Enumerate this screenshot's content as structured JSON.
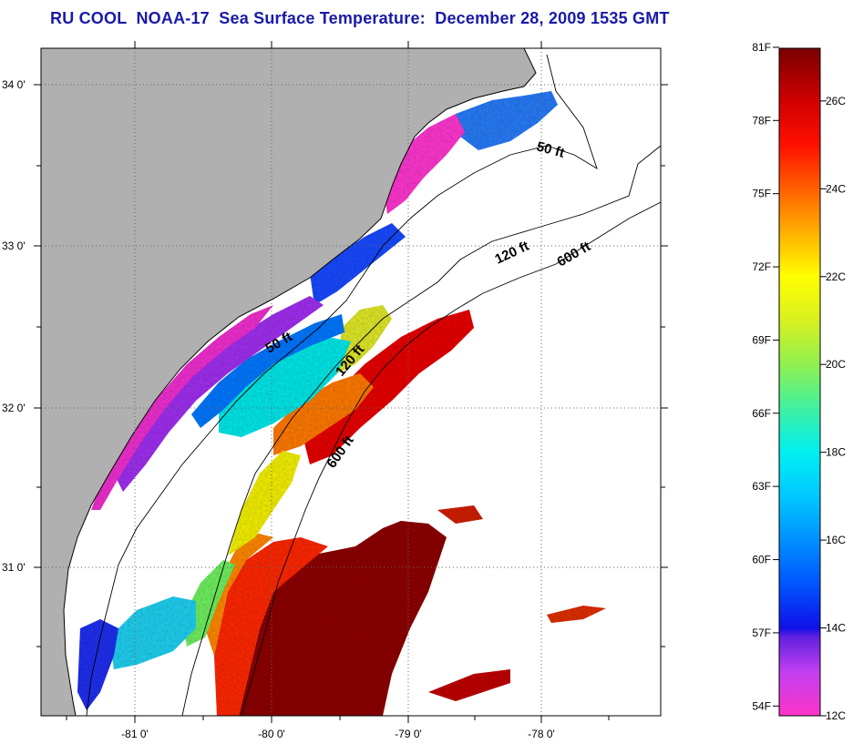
{
  "title": "RU COOL  NOAA-17  Sea Surface Temperature:  December 28, 2009 1535 GMT",
  "map": {
    "colors": {
      "land": "#b0b0b0",
      "ocean_nodata": "#ffffff",
      "grid": "#666666",
      "coast": "#000000",
      "bathymetry": "#000000"
    },
    "lat_labels": [
      "34 0'",
      "33 0'",
      "32 0'",
      "31 0'"
    ],
    "lon_labels": [
      "-81 0'",
      "-80 0'",
      "-79 0'",
      "-78 0'"
    ],
    "contour_labels": {
      "north_50": "50 ft",
      "north_120": "120 ft",
      "north_600": "600 ft",
      "mid_50": "50 ft",
      "mid_120": "120 ft",
      "south_600": "600 ft"
    }
  },
  "colorbar": {
    "fahrenheit_labels": [
      "81F",
      "78F",
      "75F",
      "72F",
      "69F",
      "66F",
      "63F",
      "60F",
      "57F",
      "54F"
    ],
    "celsius_labels": [
      "26C",
      "24C",
      "22C",
      "20C",
      "18C",
      "16C",
      "14C",
      "12C"
    ],
    "scale_min_c": 12,
    "scale_max_c": 27.2,
    "stops": [
      {
        "c": 12.0,
        "color": "#ff33c8"
      },
      {
        "c": 13.0,
        "color": "#c040f0"
      },
      {
        "c": 13.8,
        "color": "#6020e0"
      },
      {
        "c": 14.0,
        "color": "#1010e8"
      },
      {
        "c": 15.0,
        "color": "#0055ff"
      },
      {
        "c": 16.0,
        "color": "#0090ff"
      },
      {
        "c": 17.0,
        "color": "#00c8ff"
      },
      {
        "c": 18.0,
        "color": "#00f0f0"
      },
      {
        "c": 19.0,
        "color": "#40f0a0"
      },
      {
        "c": 20.0,
        "color": "#90f050"
      },
      {
        "c": 21.0,
        "color": "#d8f020"
      },
      {
        "c": 22.0,
        "color": "#ffff00"
      },
      {
        "c": 23.0,
        "color": "#ffb000"
      },
      {
        "c": 24.0,
        "color": "#ff6000"
      },
      {
        "c": 25.0,
        "color": "#ff1000"
      },
      {
        "c": 26.0,
        "color": "#d00000"
      },
      {
        "c": 27.2,
        "color": "#7a0000"
      }
    ]
  }
}
